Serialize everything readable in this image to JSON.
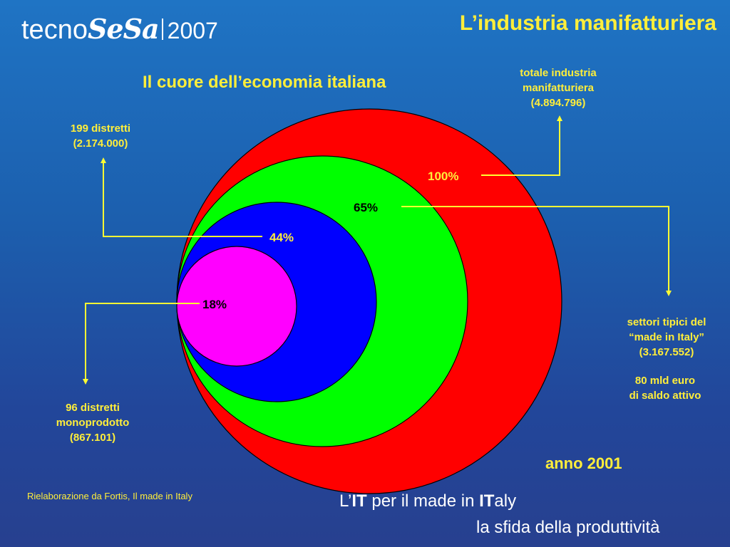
{
  "logo": {
    "brand_prefix": "tecno",
    "brand_suffix": "SeSa",
    "year": "2007"
  },
  "title": "L’industria manifatturiera",
  "subtitle": "Il cuore dell’economia italiana",
  "circles": [
    {
      "percent": "100%",
      "color": "#ff0000"
    },
    {
      "percent": "65%",
      "color": "#00ff00"
    },
    {
      "percent": "44%",
      "color": "#0000ff"
    },
    {
      "percent": "18%",
      "color": "#ff00ff"
    }
  ],
  "annotations": {
    "total": "totale industria\nmanifatturiera\n(4.894.796)",
    "districts_199": "199 distretti\n(2.174.000)",
    "made_in_italy": "settori tipici del\n“made in Italy”\n(3.167.552)",
    "trade_balance": "80 mld euro\ndi saldo attivo",
    "districts_96": "96 distretti\nmonoprodotto\n(867.101)"
  },
  "year_label": "anno 2001",
  "source": "Rielaborazione da Fortis, Il made in Italy",
  "tagline": {
    "prefix": "L’",
    "it1": "IT",
    "mid": " per il made in ",
    "it2": "IT",
    "suffix": "aly",
    "line2": "la sfida della produttività"
  },
  "colors": {
    "accent": "#ffee3a",
    "connector": "#ffff33"
  }
}
